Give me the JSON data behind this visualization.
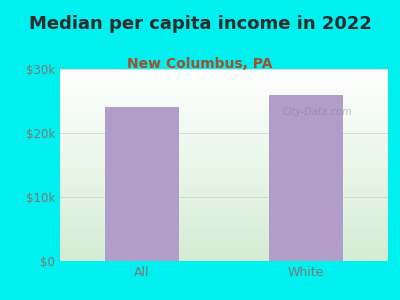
{
  "title": "Median per capita income in 2022",
  "subtitle": "New Columbus, PA",
  "categories": [
    "All",
    "White"
  ],
  "values": [
    24000,
    26000
  ],
  "bar_color": "#b09ec9",
  "title_color": "#2d2d2d",
  "subtitle_color": "#a0522d",
  "bg_color": "#00efef",
  "tick_color": "#7a7a7a",
  "ylim": [
    0,
    30000
  ],
  "yticks": [
    0,
    10000,
    20000,
    30000
  ],
  "ytick_labels": [
    "$0",
    "$10k",
    "$20k",
    "$30k"
  ],
  "title_fontsize": 13,
  "subtitle_fontsize": 10,
  "tick_fontsize": 8.5,
  "xlabel_fontsize": 9,
  "watermark": "City-Data.com"
}
